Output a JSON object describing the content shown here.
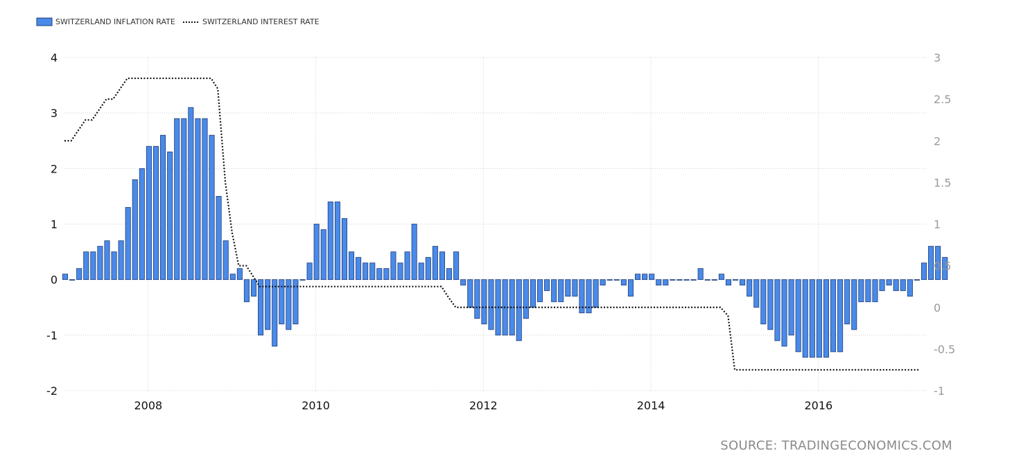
{
  "source_text": "SOURCE: TRADINGECONOMICS.COM",
  "chart_data": {
    "type": "bar",
    "legend_position": "top-left",
    "grid": true,
    "colors": {
      "bar_fill": "#4a8ae8",
      "bar_stroke": "#1f3c7a",
      "line": "#111111",
      "grid": "#d0d0d0",
      "right_axis_text": "#9a9a9a"
    },
    "x_start": 2007.0,
    "x_step_months": 1,
    "xlim": [
      2007.0,
      2017.3
    ],
    "x_ticks": [
      "2008",
      "2010",
      "2012",
      "2014",
      "2016"
    ],
    "x_tick_values": [
      2008,
      2010,
      2012,
      2014,
      2016
    ],
    "y_left": {
      "lim": [
        -2,
        4
      ],
      "ticks": [
        "4",
        "3",
        "2",
        "1",
        "0",
        "-1",
        "-2"
      ]
    },
    "y_right": {
      "lim": [
        -1,
        3
      ],
      "ticks": [
        "3",
        "2.5",
        "2",
        "1.5",
        "1",
        "0.5",
        "0",
        "-0.5",
        "-1"
      ]
    },
    "series": [
      {
        "name": "SWITZERLAND INFLATION RATE",
        "type": "bar",
        "axis": "left",
        "values": [
          0.1,
          0.0,
          0.2,
          0.5,
          0.5,
          0.6,
          0.7,
          0.5,
          0.7,
          1.3,
          1.8,
          2.0,
          2.4,
          2.4,
          2.6,
          2.3,
          2.9,
          2.9,
          3.1,
          2.9,
          2.9,
          2.6,
          1.5,
          0.7,
          0.1,
          0.2,
          -0.4,
          -0.3,
          -1.0,
          -0.9,
          -1.2,
          -0.8,
          -0.9,
          -0.8,
          0.0,
          0.3,
          1.0,
          0.9,
          1.4,
          1.4,
          1.1,
          0.5,
          0.4,
          0.3,
          0.3,
          0.2,
          0.2,
          0.5,
          0.3,
          0.5,
          1.0,
          0.3,
          0.4,
          0.6,
          0.5,
          0.2,
          0.5,
          -0.1,
          -0.5,
          -0.7,
          -0.8,
          -0.9,
          -1.0,
          -1.0,
          -1.0,
          -1.1,
          -0.7,
          -0.5,
          -0.4,
          -0.2,
          -0.4,
          -0.4,
          -0.3,
          -0.3,
          -0.6,
          -0.6,
          -0.5,
          -0.1,
          0.0,
          0.0,
          -0.1,
          -0.3,
          0.1,
          0.1,
          0.1,
          -0.1,
          -0.1,
          0.0,
          0.0,
          0.0,
          0.0,
          0.2,
          0.0,
          0.0,
          0.1,
          -0.1,
          0.0,
          -0.1,
          -0.3,
          -0.5,
          -0.8,
          -0.9,
          -1.1,
          -1.2,
          -1.0,
          -1.3,
          -1.4,
          -1.4,
          -1.4,
          -1.4,
          -1.3,
          -1.3,
          -0.8,
          -0.9,
          -0.4,
          -0.4,
          -0.4,
          -0.2,
          -0.1,
          -0.2,
          -0.2,
          -0.3,
          0.0,
          0.3,
          0.6,
          0.6,
          0.4
        ]
      },
      {
        "name": "SWITZERLAND INTEREST RATE",
        "type": "line",
        "style": "dotted",
        "axis": "right",
        "points": [
          [
            2007.0,
            2.0
          ],
          [
            2007.08,
            2.0
          ],
          [
            2007.25,
            2.25
          ],
          [
            2007.33,
            2.25
          ],
          [
            2007.5,
            2.5
          ],
          [
            2007.58,
            2.5
          ],
          [
            2007.75,
            2.75
          ],
          [
            2008.75,
            2.75
          ],
          [
            2008.83,
            2.625
          ],
          [
            2008.92,
            1.5
          ],
          [
            2009.0,
            0.9
          ],
          [
            2009.08,
            0.5
          ],
          [
            2009.17,
            0.5
          ],
          [
            2009.25,
            0.375
          ],
          [
            2009.33,
            0.25
          ],
          [
            2011.5,
            0.25
          ],
          [
            2011.58,
            0.125
          ],
          [
            2011.67,
            0.0
          ],
          [
            2014.83,
            0.0
          ],
          [
            2014.92,
            -0.1
          ],
          [
            2015.0,
            -0.75
          ],
          [
            2017.2,
            -0.75
          ]
        ]
      }
    ]
  }
}
